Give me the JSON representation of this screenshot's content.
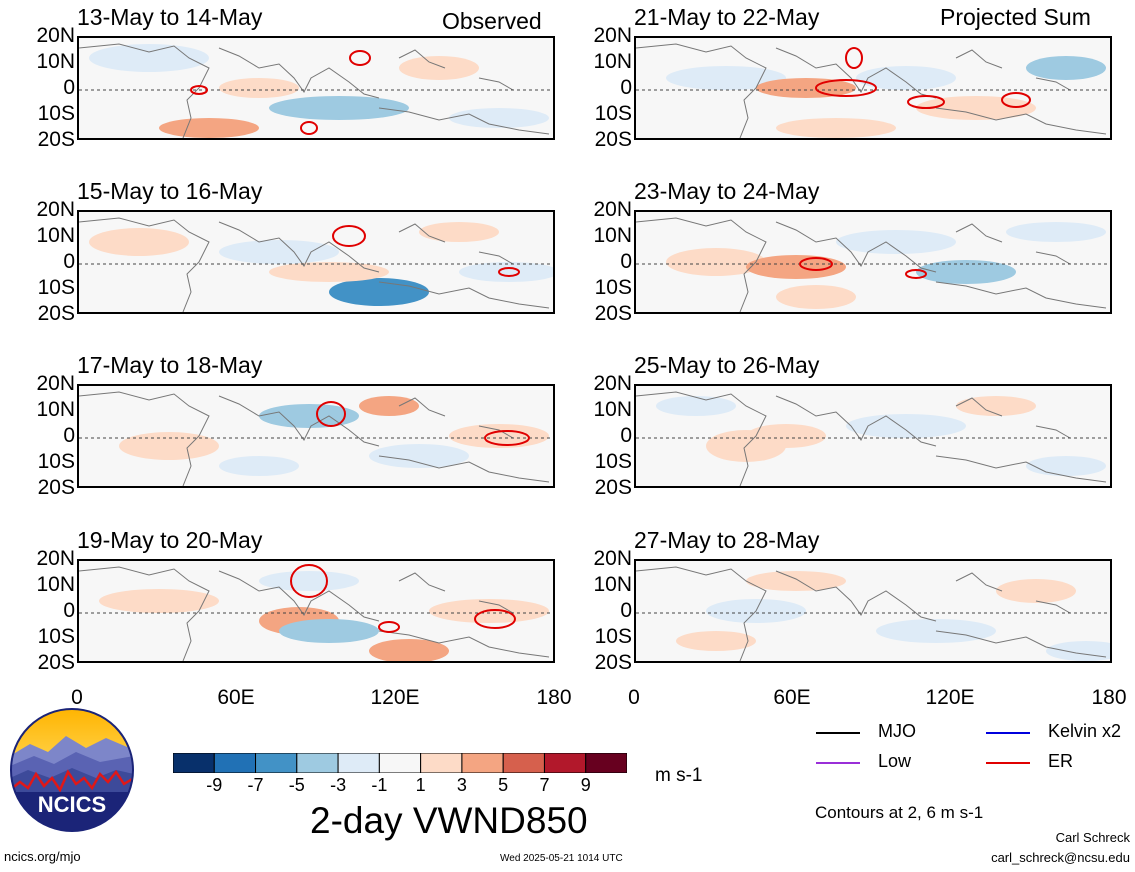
{
  "header": {
    "observed_label": "Observed",
    "projected_label": "Projected Sum"
  },
  "chart_data": {
    "type": "heatmap",
    "variable_title": "2-day VWND850",
    "units": "m s-1",
    "contour_note": "Contours at 2, 6 m s-1",
    "y_tick_labels": [
      "20N",
      "10N",
      "0",
      "10S",
      "20S"
    ],
    "x_tick_labels": [
      "0",
      "60E",
      "120E",
      "180"
    ],
    "xlim": [
      0,
      180
    ],
    "ylim": [
      -20,
      20
    ],
    "colorbar": {
      "ticks": [
        "-9",
        "-7",
        "-5",
        "-3",
        "-1",
        "1",
        "3",
        "5",
        "7",
        "9"
      ],
      "colors": [
        "#08306b",
        "#2171b5",
        "#4292c6",
        "#9ecae1",
        "#deebf7",
        "#f7f7f7",
        "#fddbc7",
        "#f4a582",
        "#d6604d",
        "#b2182b",
        "#67001f"
      ]
    },
    "legend": [
      {
        "name": "MJO",
        "color": "#000000"
      },
      {
        "name": "Kelvin x2",
        "color": "#0000dd"
      },
      {
        "name": "Low",
        "color": "#9a2fd8"
      },
      {
        "name": "ER",
        "color": "#e00000"
      }
    ],
    "panels_observed": [
      {
        "title": "13-May to 14-May"
      },
      {
        "title": "15-May to 16-May"
      },
      {
        "title": "17-May to 18-May"
      },
      {
        "title": "19-May to 20-May"
      }
    ],
    "panels_projected": [
      {
        "title": "21-May to 22-May"
      },
      {
        "title": "23-May to 24-May"
      },
      {
        "title": "25-May to 26-May"
      },
      {
        "title": "27-May to 28-May"
      }
    ]
  },
  "logo": {
    "text": "NCICS"
  },
  "footer": {
    "url": "ncics.org/mjo",
    "timestamp": "Wed 2025-05-21 1014 UTC",
    "author": "Carl Schreck",
    "email": "carl_schreck@ncsu.edu"
  }
}
